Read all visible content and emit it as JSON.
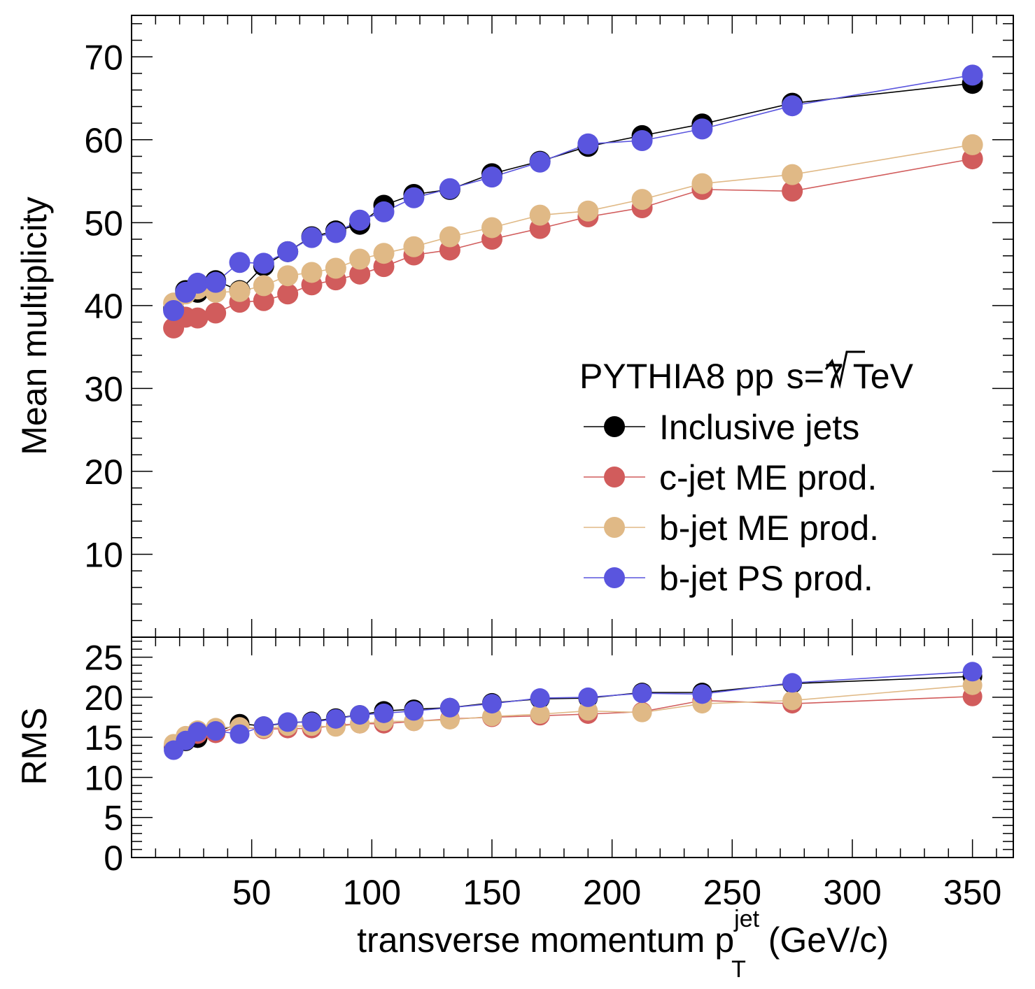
{
  "chart_data": [
    {
      "type": "line",
      "panel": "top",
      "ylabel": "Mean multiplicity",
      "ylim": [
        0,
        75
      ],
      "xlim": [
        0,
        367
      ],
      "yticks": [
        10,
        20,
        30,
        40,
        50,
        60,
        70
      ],
      "legend": {
        "position": "right",
        "header_prefix": "PYTHIA8 pp ",
        "header_sqrt": "s",
        "header_suffix": "=7 TeV"
      },
      "x": [
        17.5,
        22.5,
        27.5,
        35,
        45,
        55,
        65,
        75,
        85,
        95,
        105,
        117.5,
        132.5,
        150,
        170,
        190,
        212.5,
        237.5,
        275,
        350
      ],
      "series": [
        {
          "name": "Inclusive jets",
          "color": "#000000",
          "values": [
            39.6,
            41.8,
            41.6,
            43.0,
            41.8,
            44.8,
            46.5,
            48.3,
            49.0,
            49.8,
            52.1,
            53.4,
            54.0,
            55.9,
            57.4,
            59.2,
            60.5,
            61.9,
            64.4,
            66.8
          ]
        },
        {
          "name": "c-jet ME prod.",
          "color": "#d15c5c",
          "values": [
            37.3,
            38.6,
            38.5,
            39.1,
            40.4,
            40.6,
            41.4,
            42.5,
            43.1,
            43.8,
            44.7,
            46.1,
            46.7,
            48.0,
            49.3,
            50.7,
            51.8,
            54.0,
            53.8,
            57.7
          ]
        },
        {
          "name": "b-jet ME prod.",
          "color": "#e0b986",
          "values": [
            40.3,
            41.4,
            42.0,
            41.6,
            41.7,
            42.4,
            43.6,
            44.0,
            44.5,
            45.6,
            46.3,
            47.1,
            48.3,
            49.4,
            50.9,
            51.4,
            52.8,
            54.7,
            55.8,
            59.4
          ]
        },
        {
          "name": "b-jet PS prod.",
          "color": "#5a55de",
          "values": [
            39.4,
            41.6,
            42.7,
            42.8,
            45.2,
            45.1,
            46.5,
            48.2,
            48.8,
            50.3,
            51.3,
            53.0,
            54.1,
            55.5,
            57.3,
            59.5,
            59.9,
            61.3,
            64.1,
            67.8
          ]
        }
      ]
    },
    {
      "type": "line",
      "panel": "bottom",
      "ylabel": "RMS",
      "ylim": [
        0,
        27.5
      ],
      "xlim": [
        0,
        367
      ],
      "yticks": [
        0,
        5,
        10,
        15,
        20,
        25
      ],
      "xticks": [
        50,
        100,
        150,
        200,
        250,
        300,
        350
      ],
      "xlabel_main": "transverse momentum p",
      "xlabel_sup": "jet",
      "xlabel_sub": "T",
      "xlabel_unit": " (GeV/c)",
      "x": [
        17.5,
        22.5,
        27.5,
        35,
        45,
        55,
        65,
        75,
        85,
        95,
        105,
        117.5,
        132.5,
        150,
        170,
        190,
        212.5,
        237.5,
        275,
        350
      ],
      "series": [
        {
          "name": "Inclusive jets",
          "color": "#000000",
          "values": [
            13.8,
            14.5,
            14.9,
            15.7,
            16.7,
            16.4,
            16.8,
            17.0,
            17.4,
            17.8,
            18.3,
            18.5,
            18.7,
            19.3,
            19.8,
            19.9,
            20.6,
            20.6,
            21.7,
            22.6
          ]
        },
        {
          "name": "c-jet ME prod.",
          "color": "#d15c5c",
          "values": [
            14.0,
            14.9,
            15.4,
            15.5,
            16.3,
            16.0,
            16.1,
            16.1,
            16.5,
            16.7,
            16.7,
            17.0,
            17.3,
            17.5,
            17.7,
            17.9,
            18.2,
            19.6,
            19.2,
            20.1
          ]
        },
        {
          "name": "b-jet ME prod.",
          "color": "#e0b986",
          "values": [
            14.2,
            15.2,
            15.9,
            16.2,
            16.3,
            16.1,
            16.4,
            16.4,
            16.3,
            16.7,
            17.0,
            17.0,
            17.2,
            17.6,
            17.9,
            18.3,
            18.1,
            19.2,
            19.6,
            21.5
          ]
        },
        {
          "name": "b-jet PS prod.",
          "color": "#5a55de",
          "values": [
            13.4,
            14.6,
            15.7,
            15.8,
            15.4,
            16.4,
            16.9,
            16.9,
            17.3,
            17.8,
            18.0,
            18.3,
            18.7,
            19.2,
            19.9,
            20.0,
            20.5,
            20.4,
            21.8,
            23.2
          ]
        }
      ]
    }
  ]
}
